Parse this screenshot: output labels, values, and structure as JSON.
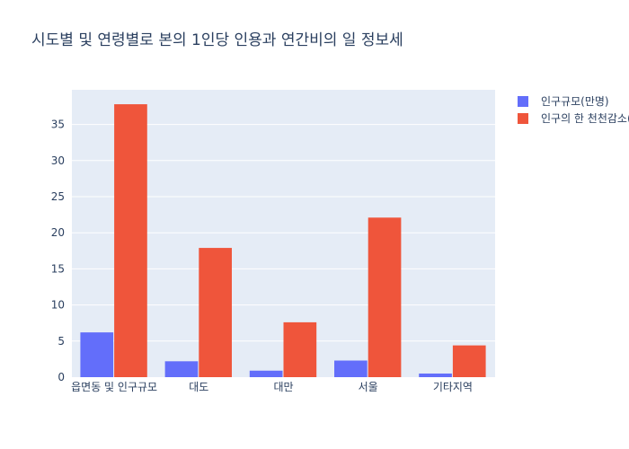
{
  "chart_data": {
    "type": "bar",
    "title": "시도별 및 연령별로 본의 1인당 인용과 연간비의 일 정보세",
    "categories": [
      "읍면동 및 인구규모",
      "대도",
      "대만",
      "서울",
      "기타지역"
    ],
    "series": [
      {
        "name": "인구규모(만명)",
        "values": [
          6.2,
          2.2,
          0.9,
          2.3,
          0.5
        ],
        "color": "#636efa"
      },
      {
        "name": "인구의 한 천천감소(%)",
        "values": [
          37.8,
          17.9,
          7.6,
          22.1,
          4.4
        ],
        "color": "#ef553b"
      }
    ],
    "ylim": [
      0,
      39.8
    ],
    "yticks": [
      0,
      5,
      10,
      15,
      20,
      25,
      30,
      35
    ],
    "grid": true,
    "legend_position": "top-right",
    "plot_bgcolor": "#e5ecf6"
  }
}
